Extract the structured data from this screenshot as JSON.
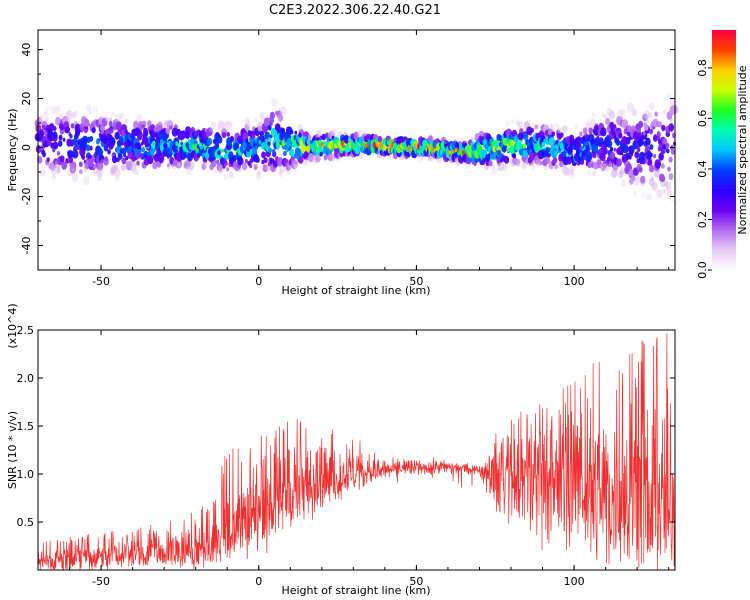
{
  "title": "C2E3.2022.306.22.40.G21",
  "chart_data": [
    {
      "type": "heatmap",
      "title": "",
      "xlabel": "Height of straight line (km)",
      "ylabel": "Frequency (Hz)",
      "xlim": [
        -70,
        132
      ],
      "ylim": [
        -50,
        48
      ],
      "x_ticks": [
        -50,
        0,
        50,
        100
      ],
      "y_ticks": [
        -40,
        -20,
        0,
        20,
        40
      ],
      "colorbar": {
        "label": "Normalized spectral amplitude",
        "range": [
          0.0,
          0.95
        ],
        "ticks": [
          0.0,
          0.2,
          0.4,
          0.6,
          0.8
        ],
        "tick_labels": [
          "0.0",
          "0.2",
          "0.4",
          "0.6",
          "0.8"
        ],
        "colormap": [
          "#ffffff",
          "#e8c8f5",
          "#b36cf0",
          "#6a00f2",
          "#2a00ff",
          "#0040ff",
          "#00c8ff",
          "#00ffb0",
          "#20ff20",
          "#c8ff00",
          "#ffd000",
          "#ff4000",
          "#ff0040"
        ]
      },
      "profile": {
        "x": [
          -70,
          -55,
          -40,
          -25,
          -10,
          0,
          5,
          15,
          25,
          35,
          45,
          55,
          65,
          72,
          80,
          90,
          100,
          110,
          120,
          132
        ],
        "center_freq": [
          2,
          1,
          1,
          1,
          -1,
          0,
          3,
          0,
          1,
          1,
          0,
          0,
          -2,
          -1,
          1,
          1,
          -2,
          2,
          -1,
          0
        ],
        "peak_amplitude": [
          0.35,
          0.4,
          0.45,
          0.55,
          0.6,
          0.5,
          0.55,
          0.75,
          0.85,
          0.85,
          0.9,
          0.9,
          0.9,
          0.75,
          0.65,
          0.6,
          0.5,
          0.4,
          0.35,
          0.3
        ],
        "spread_hz": [
          14,
          16,
          12,
          10,
          10,
          12,
          16,
          6,
          5,
          4,
          4,
          4,
          4,
          8,
          9,
          9,
          10,
          14,
          20,
          24
        ]
      }
    },
    {
      "type": "line",
      "title": "",
      "xlabel": "Height of straight line (km)",
      "ylabel": "SNR (10 * v/v)",
      "y_multiplier": "(x10^4)",
      "xlim": [
        -70,
        132
      ],
      "ylim": [
        0,
        2.5
      ],
      "x_ticks": [
        -50,
        0,
        50,
        100
      ],
      "y_ticks": [
        0.5,
        1.0,
        1.5,
        2.0,
        2.5
      ],
      "y_tick_labels": [
        "0.5",
        "1.0",
        "1.5",
        "2.0",
        "2.5"
      ],
      "color": "#f03030",
      "series": [
        {
          "name": "",
          "envelope_x": [
            -70,
            -50,
            -30,
            -15,
            -10,
            0,
            10,
            20,
            30,
            40,
            50,
            60,
            70,
            75,
            90,
            100,
            110,
            120,
            132
          ],
          "envelope_low": [
            0.0,
            0.0,
            0.05,
            0.05,
            0.1,
            0.3,
            0.5,
            0.7,
            0.85,
            0.95,
            1.0,
            1.0,
            1.0,
            0.5,
            0.2,
            0.1,
            0.05,
            0.05,
            0.05
          ],
          "envelope_high": [
            0.3,
            0.4,
            0.5,
            0.7,
            1.3,
            1.4,
            1.6,
            1.6,
            1.4,
            1.2,
            1.2,
            1.15,
            1.1,
            1.5,
            1.8,
            2.0,
            2.3,
            2.5,
            2.5
          ],
          "baseline": [
            0.1,
            0.15,
            0.2,
            0.25,
            0.5,
            0.6,
            0.8,
            0.95,
            1.0,
            1.05,
            1.08,
            1.08,
            1.05,
            1.0,
            0.95,
            0.95,
            0.9,
            0.85,
            0.8
          ]
        }
      ]
    }
  ]
}
